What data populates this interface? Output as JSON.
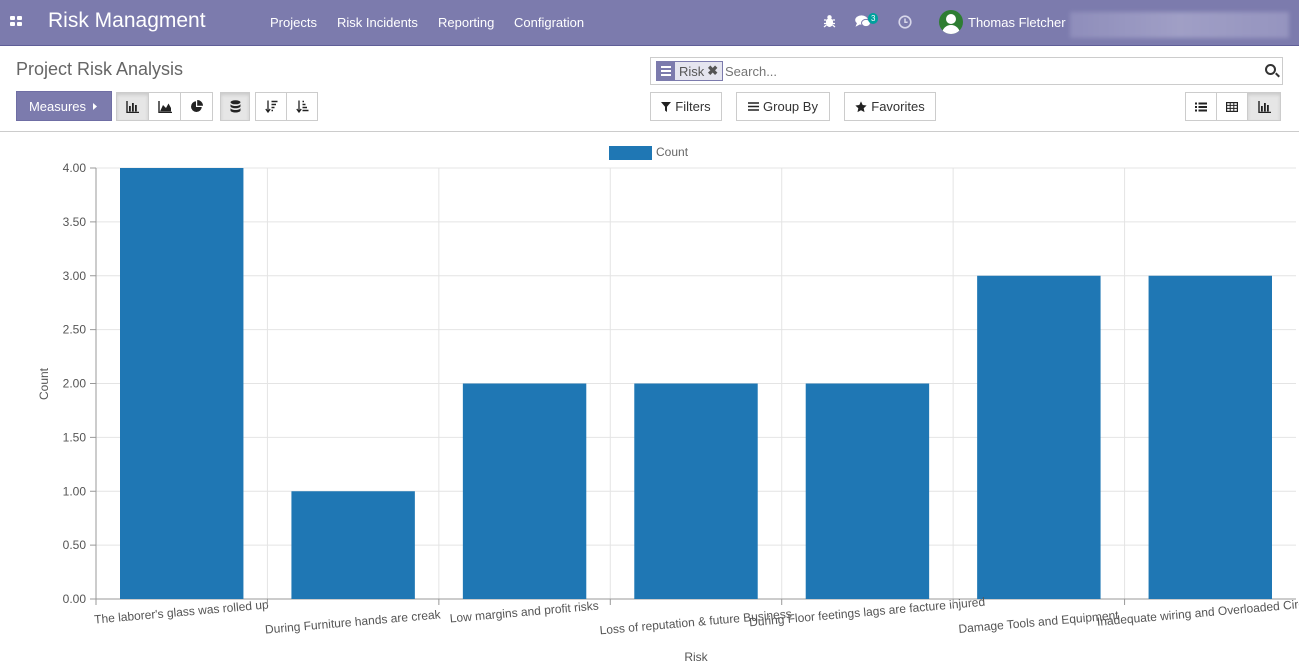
{
  "navbar": {
    "brand": "Risk Managment",
    "menu": [
      "Projects",
      "Risk Incidents",
      "Reporting",
      "Configration"
    ],
    "messages_badge": "3",
    "user_name": "Thomas Fletcher"
  },
  "control_panel": {
    "title": "Project Risk Analysis",
    "facet_label": "Risk",
    "facet_remove": "✖",
    "search_placeholder": "Search...",
    "measures_label": "Measures",
    "filters_label": "Filters",
    "group_by_label": "Group By",
    "favorites_label": "Favorites",
    "active_chart_mode": "bar",
    "active_view": "graph"
  },
  "colors": {
    "navbar": "#7c7bad",
    "bar": "#1f77b4"
  },
  "chart_data": {
    "type": "bar",
    "categories": [
      "The laborer's glass was rolled up",
      "During Furniture hands are creak",
      "Low margins and profit risks",
      "Loss of reputation & future Business",
      "During Floor feetings lags are facture injured",
      "Damage Tools and Equipment",
      "Inadequate wiring and Overloaded Circuits"
    ],
    "series": [
      {
        "name": "Count",
        "values": [
          4,
          1,
          2,
          2,
          2,
          3,
          3
        ]
      }
    ],
    "xlabel": "Risk",
    "ylabel": "Count",
    "ylim": [
      0,
      4
    ],
    "yticks": [
      "0.00",
      "0.50",
      "1.00",
      "1.50",
      "2.00",
      "2.50",
      "3.00",
      "3.50",
      "4.00"
    ],
    "grid": true,
    "legend_position": "top"
  }
}
